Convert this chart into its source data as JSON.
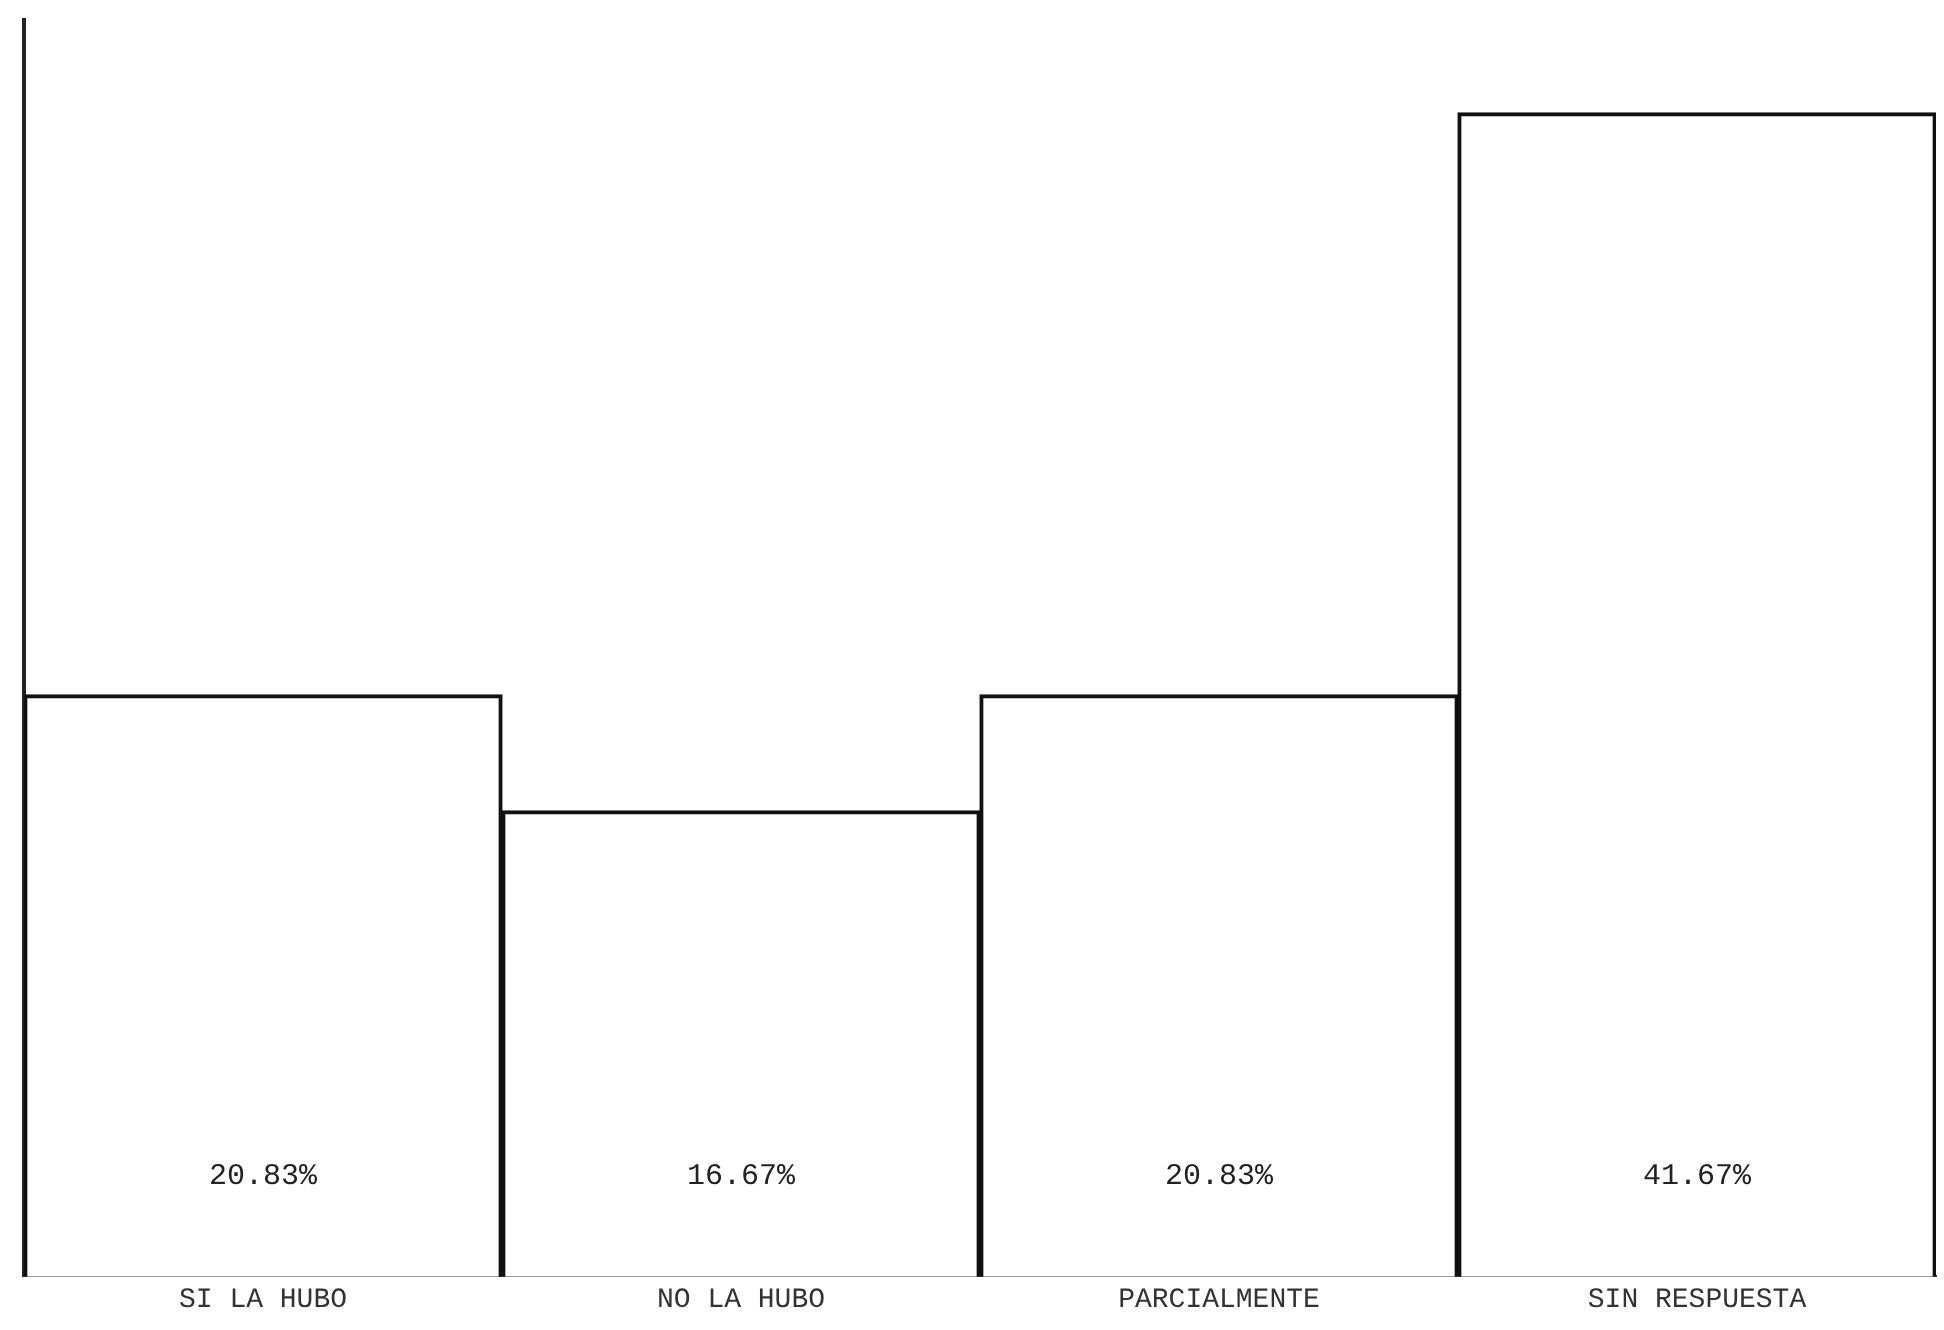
{
  "chart_data": {
    "type": "bar",
    "categories": [
      "SI LA HUBO",
      "NO LA HUBO",
      "PARCIALMENTE",
      "SIN RESPUESTA"
    ],
    "values": [
      20.83,
      16.67,
      20.83,
      41.67
    ],
    "value_labels": [
      "20.83%",
      "16.67%",
      "20.83%",
      "41.67%"
    ],
    "color": "#ffffff",
    "tick_labels": "x",
    "grid": false,
    "legend": false
  }
}
